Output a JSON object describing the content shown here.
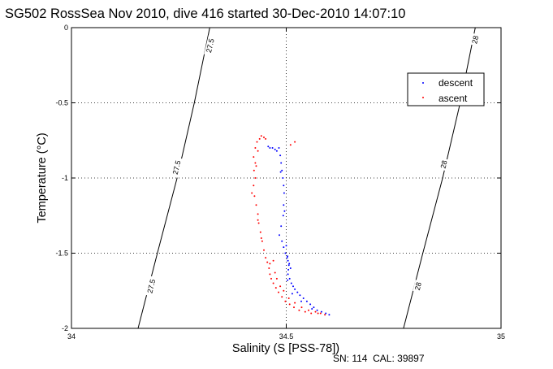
{
  "chart_data": {
    "type": "scatter",
    "title": "SG502 RossSea Nov 2010, dive 416 started 30-Dec-2010 14:07:10",
    "xlabel": "Salinity (S [PSS-78])",
    "ylabel": "Temperature (°C)",
    "footer": "SN: 114  CAL: 39897",
    "xlim": [
      34,
      35
    ],
    "ylim": [
      -2,
      0
    ],
    "x_ticks": [
      "34",
      "34.5",
      "35"
    ],
    "y_ticks": [
      "0",
      "-0.5",
      "-1",
      "-1.5",
      "-2"
    ],
    "grid": true,
    "legend_position": "top-right",
    "isopycnals": [
      {
        "label": "27.5",
        "points": [
          [
            34.155,
            -2.0
          ],
          [
            34.2,
            -1.5
          ],
          [
            34.246,
            -1.0
          ],
          [
            34.286,
            -0.5
          ],
          [
            34.322,
            0.0
          ]
        ]
      },
      {
        "label": "28",
        "points": [
          [
            34.773,
            -2.0
          ],
          [
            34.818,
            -1.5
          ],
          [
            34.864,
            -1.0
          ],
          [
            34.905,
            -0.5
          ],
          [
            34.94,
            0.0
          ]
        ]
      }
    ],
    "isopycnal_labels": [
      {
        "text": "27.5",
        "line": 0,
        "at": [
          34.323,
          -0.12
        ]
      },
      {
        "text": "27.5",
        "line": 0,
        "at": [
          34.245,
          -0.93
        ]
      },
      {
        "text": "27.5",
        "line": 0,
        "at": [
          34.186,
          -1.72
        ]
      },
      {
        "text": "28",
        "line": 1,
        "at": [
          34.94,
          -0.08
        ]
      },
      {
        "text": "28",
        "line": 1,
        "at": [
          34.867,
          -0.91
        ]
      },
      {
        "text": "28",
        "line": 1,
        "at": [
          34.807,
          -1.72
        ]
      }
    ],
    "series": [
      {
        "name": "descent",
        "color": "#0000ff",
        "points": [
          [
            34.458,
            -0.79
          ],
          [
            34.462,
            -0.8
          ],
          [
            34.468,
            -0.8
          ],
          [
            34.474,
            -0.81
          ],
          [
            34.478,
            -0.82
          ],
          [
            34.483,
            -0.8
          ],
          [
            34.486,
            -0.85
          ],
          [
            34.488,
            -0.9
          ],
          [
            34.49,
            -0.95
          ],
          [
            34.492,
            -1.0
          ],
          [
            34.494,
            -1.05
          ],
          [
            34.495,
            -1.1
          ],
          [
            34.494,
            -1.18
          ],
          [
            34.493,
            -1.25
          ],
          [
            34.488,
            -1.32
          ],
          [
            34.484,
            -1.38
          ],
          [
            34.49,
            -1.42
          ],
          [
            34.494,
            -1.46
          ],
          [
            34.498,
            -1.5
          ],
          [
            34.502,
            -1.53
          ],
          [
            34.504,
            -1.55
          ],
          [
            34.506,
            -1.58
          ],
          [
            34.505,
            -1.61
          ],
          [
            34.504,
            -1.64
          ],
          [
            34.508,
            -1.67
          ],
          [
            34.512,
            -1.7
          ],
          [
            34.516,
            -1.72
          ],
          [
            34.52,
            -1.74
          ],
          [
            34.526,
            -1.76
          ],
          [
            34.532,
            -1.78
          ],
          [
            34.54,
            -1.8
          ],
          [
            34.548,
            -1.82
          ],
          [
            34.556,
            -1.84
          ],
          [
            34.564,
            -1.86
          ],
          [
            34.572,
            -1.88
          ],
          [
            34.582,
            -1.89
          ],
          [
            34.592,
            -1.9
          ],
          [
            34.6,
            -1.91
          ],
          [
            34.487,
            -0.96
          ],
          [
            34.496,
            -1.22
          ],
          [
            34.5,
            -1.45
          ],
          [
            34.503,
            -1.52
          ],
          [
            34.507,
            -1.57
          ],
          [
            34.51,
            -1.6
          ],
          [
            34.503,
            -1.68
          ],
          [
            34.514,
            -1.77
          ],
          [
            34.535,
            -1.82
          ],
          [
            34.56,
            -1.87
          ]
        ]
      },
      {
        "name": "ascent",
        "color": "#ff0000",
        "points": [
          [
            34.442,
            -0.72
          ],
          [
            34.448,
            -0.73
          ],
          [
            34.452,
            -0.74
          ],
          [
            34.438,
            -0.74
          ],
          [
            34.432,
            -0.76
          ],
          [
            34.428,
            -0.8
          ],
          [
            34.424,
            -0.86
          ],
          [
            34.428,
            -0.9
          ],
          [
            34.425,
            -0.95
          ],
          [
            34.428,
            -1.0
          ],
          [
            34.424,
            -1.05
          ],
          [
            34.42,
            -1.1
          ],
          [
            34.426,
            -1.12
          ],
          [
            34.43,
            -1.18
          ],
          [
            34.434,
            -1.24
          ],
          [
            34.436,
            -1.3
          ],
          [
            34.44,
            -1.36
          ],
          [
            34.444,
            -1.42
          ],
          [
            34.448,
            -1.48
          ],
          [
            34.452,
            -1.53
          ],
          [
            34.456,
            -1.56
          ],
          [
            34.46,
            -1.6
          ],
          [
            34.462,
            -1.64
          ],
          [
            34.465,
            -1.67
          ],
          [
            34.47,
            -1.7
          ],
          [
            34.476,
            -1.73
          ],
          [
            34.482,
            -1.76
          ],
          [
            34.49,
            -1.79
          ],
          [
            34.498,
            -1.82
          ],
          [
            34.508,
            -1.84
          ],
          [
            34.518,
            -1.86
          ],
          [
            34.53,
            -1.88
          ],
          [
            34.544,
            -1.89
          ],
          [
            34.558,
            -1.9
          ],
          [
            34.574,
            -1.9
          ],
          [
            34.59,
            -1.91
          ],
          [
            34.462,
            -1.57
          ],
          [
            34.47,
            -1.55
          ],
          [
            34.474,
            -1.63
          ],
          [
            34.478,
            -1.67
          ],
          [
            34.486,
            -1.72
          ],
          [
            34.494,
            -1.75
          ],
          [
            34.506,
            -1.8
          ],
          [
            34.52,
            -1.83
          ],
          [
            34.536,
            -1.86
          ],
          [
            34.552,
            -1.88
          ],
          [
            34.568,
            -1.89
          ],
          [
            34.58,
            -1.9
          ],
          [
            34.52,
            -0.76
          ],
          [
            34.51,
            -0.78
          ],
          [
            34.434,
            -0.82
          ],
          [
            34.43,
            -0.92
          ],
          [
            34.434,
            -1.28
          ],
          [
            34.442,
            -1.4
          ]
        ]
      }
    ]
  }
}
